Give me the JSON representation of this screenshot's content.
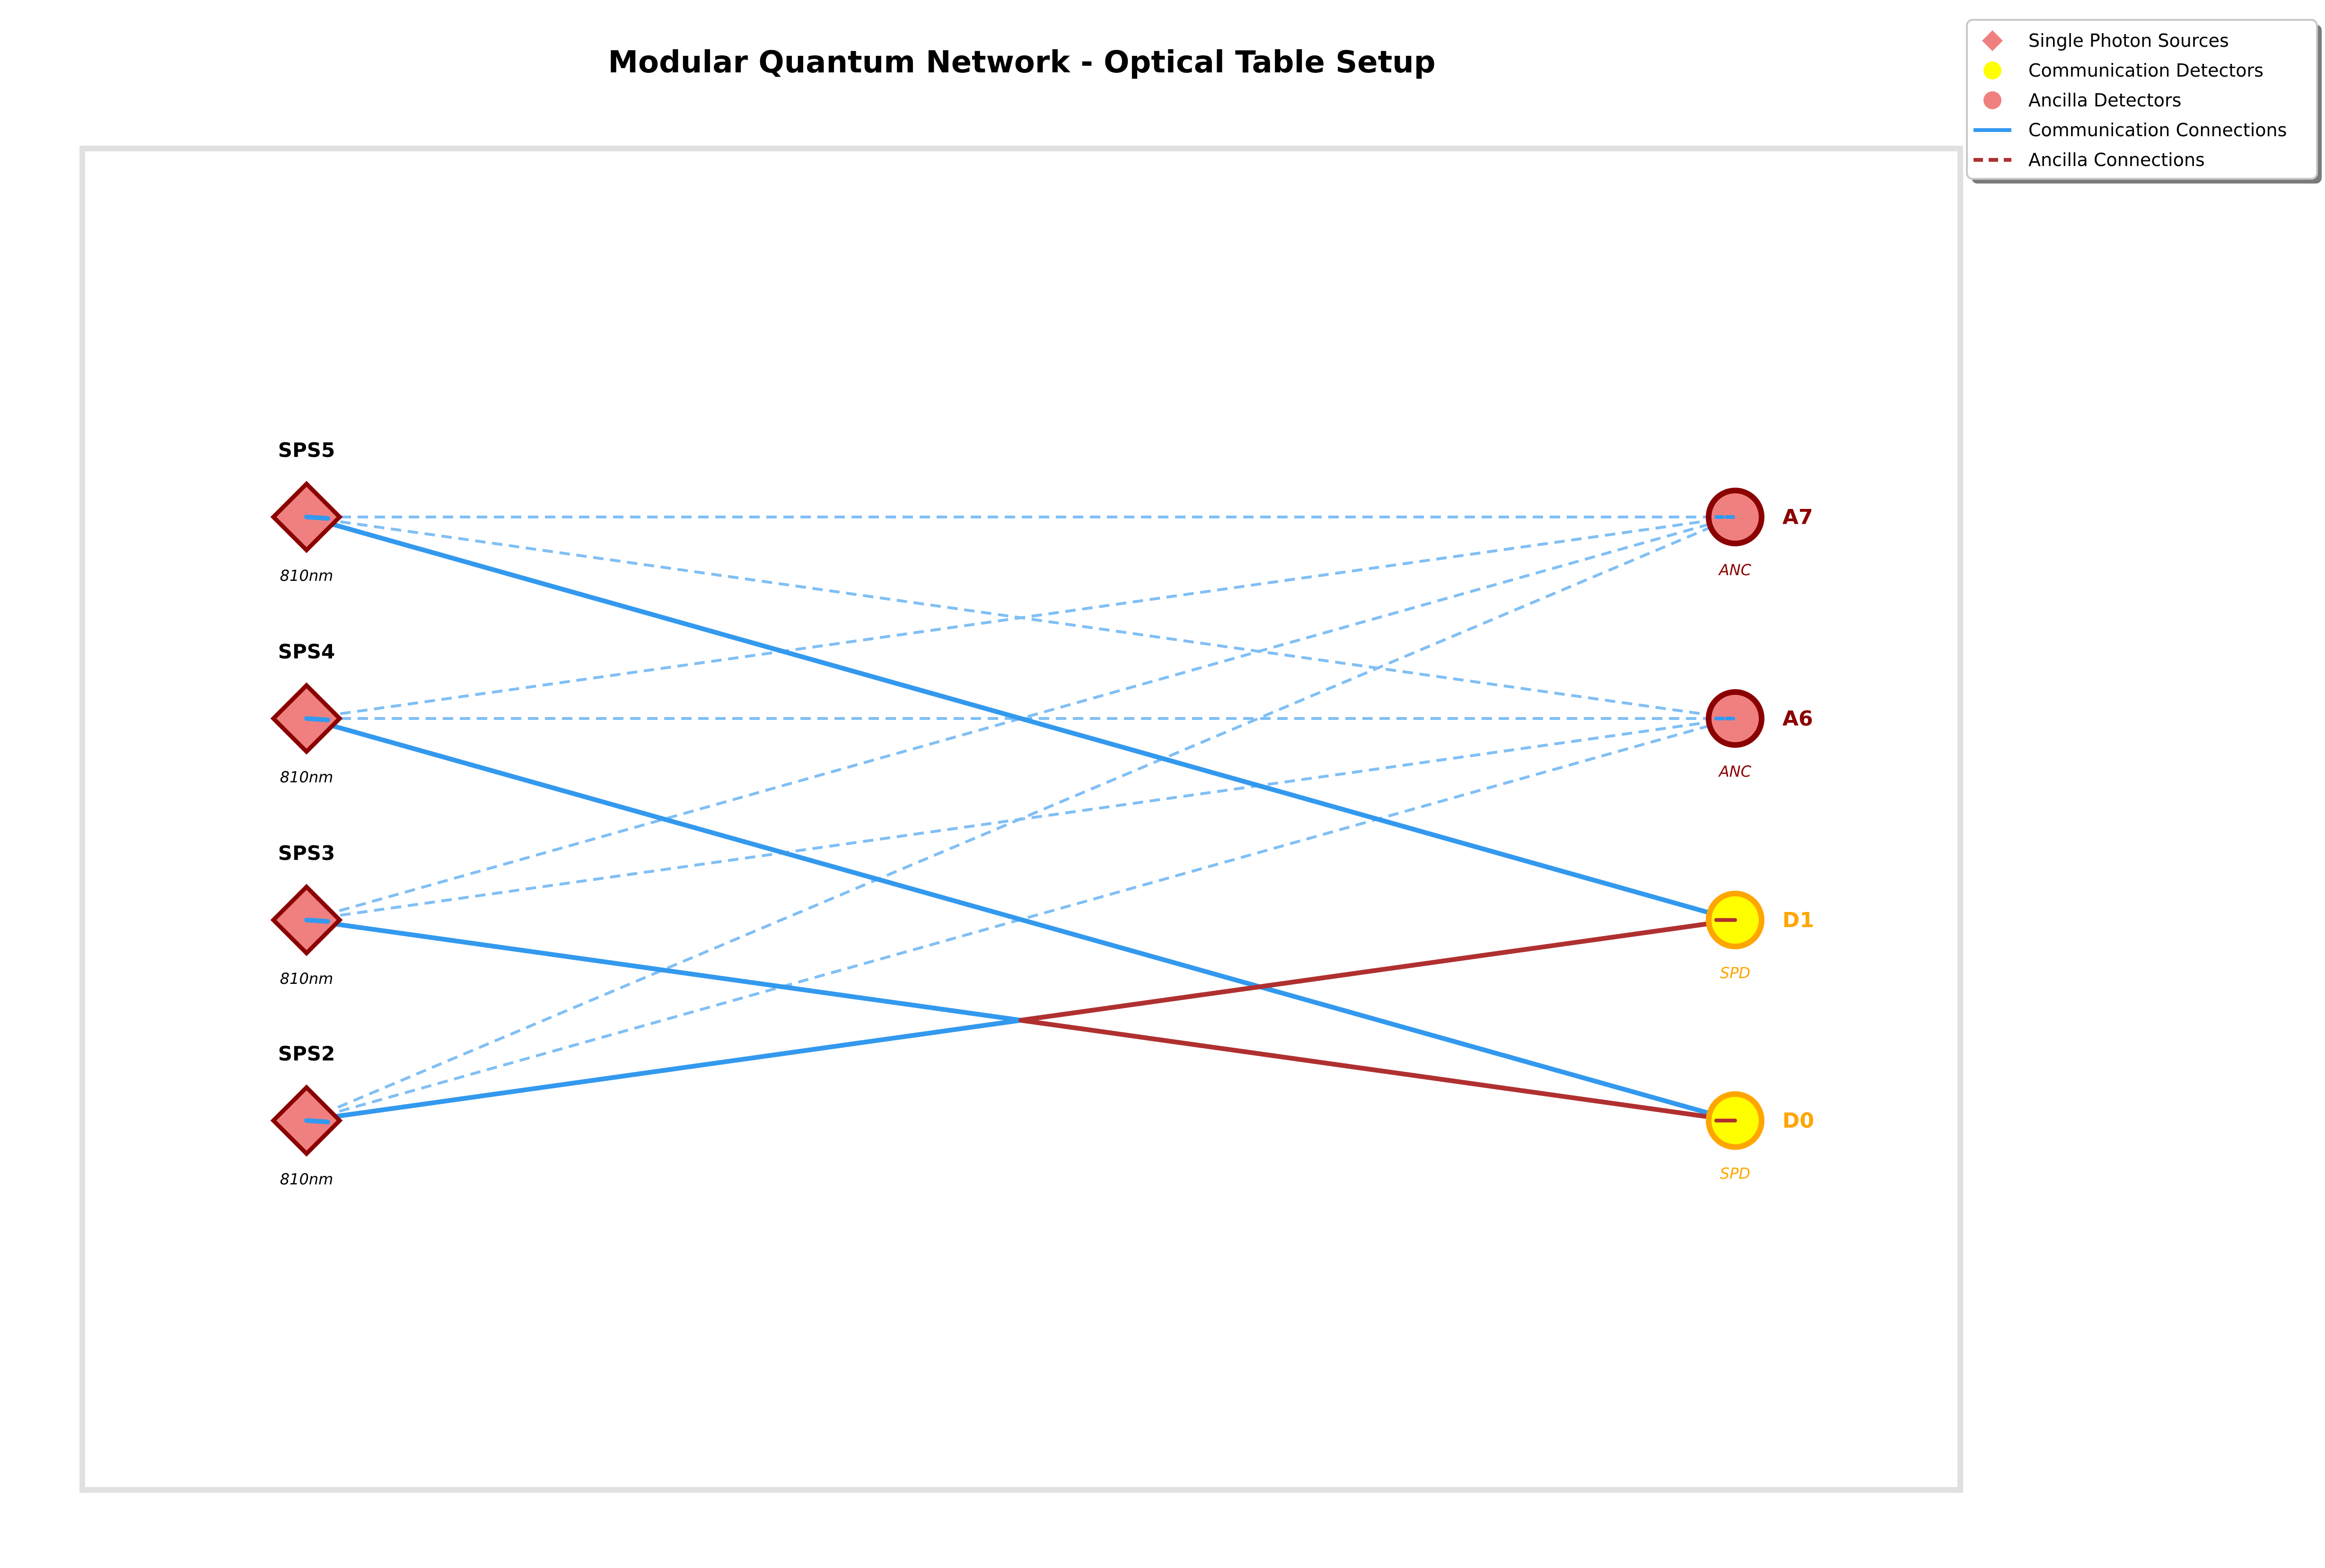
{
  "title": "Modular Quantum Network - Optical Table Setup",
  "colors": {
    "source_fill": "#f08080",
    "source_stroke": "#8b0000",
    "comm_detector_fill": "#ffff00",
    "comm_detector_stroke": "#ffa500",
    "ancilla_fill": "#f08080",
    "ancilla_stroke": "#8b0000",
    "comm_line": "#3399ee",
    "ancilla_line": "#b03030",
    "dashed_line": "#80bff5",
    "table_border": "#e0e0e0"
  },
  "legend": {
    "items": [
      {
        "label": "Single Photon Sources",
        "marker": "diamond",
        "color": "#f08080"
      },
      {
        "label": "Communication Detectors",
        "marker": "circle",
        "color": "#ffff00"
      },
      {
        "label": "Ancilla Detectors",
        "marker": "circle",
        "color": "#f08080"
      },
      {
        "label": "Communication Connections",
        "marker": "solid-line",
        "color": "#3399ee"
      },
      {
        "label": "Ancilla Connections",
        "marker": "dashed-line",
        "color": "#b03030"
      }
    ]
  },
  "sources": [
    {
      "id": "SPS5",
      "label": "SPS5",
      "sublabel": "810nm"
    },
    {
      "id": "SPS4",
      "label": "SPS4",
      "sublabel": "810nm"
    },
    {
      "id": "SPS3",
      "label": "SPS3",
      "sublabel": "810nm"
    },
    {
      "id": "SPS2",
      "label": "SPS2",
      "sublabel": "810nm"
    }
  ],
  "detectors": [
    {
      "id": "A7",
      "label": "A7",
      "sublabel": "ANC",
      "kind": "ancilla"
    },
    {
      "id": "A6",
      "label": "A6",
      "sublabel": "ANC",
      "kind": "ancilla"
    },
    {
      "id": "D1",
      "label": "D1",
      "sublabel": "SPD",
      "kind": "communication"
    },
    {
      "id": "D0",
      "label": "D0",
      "sublabel": "SPD",
      "kind": "communication"
    }
  ],
  "connections": [
    {
      "from": "SPS5",
      "to": "A7",
      "style": "dashed"
    },
    {
      "from": "SPS5",
      "to": "A6",
      "style": "dashed"
    },
    {
      "from": "SPS4",
      "to": "A7",
      "style": "dashed"
    },
    {
      "from": "SPS4",
      "to": "A6",
      "style": "dashed"
    },
    {
      "from": "SPS3",
      "to": "A7",
      "style": "dashed"
    },
    {
      "from": "SPS3",
      "to": "A6",
      "style": "dashed"
    },
    {
      "from": "SPS2",
      "to": "A7",
      "style": "dashed"
    },
    {
      "from": "SPS2",
      "to": "A6",
      "style": "dashed"
    },
    {
      "from": "SPS5",
      "to": "D1",
      "style": "communication"
    },
    {
      "from": "SPS4",
      "to": "D0",
      "style": "communication"
    },
    {
      "from": "SPS3",
      "to": "D0",
      "style": "split",
      "colors": [
        "#3399ee",
        "#b03030"
      ]
    },
    {
      "from": "SPS2",
      "to": "D1",
      "style": "split",
      "colors": [
        "#3399ee",
        "#b03030"
      ]
    }
  ]
}
